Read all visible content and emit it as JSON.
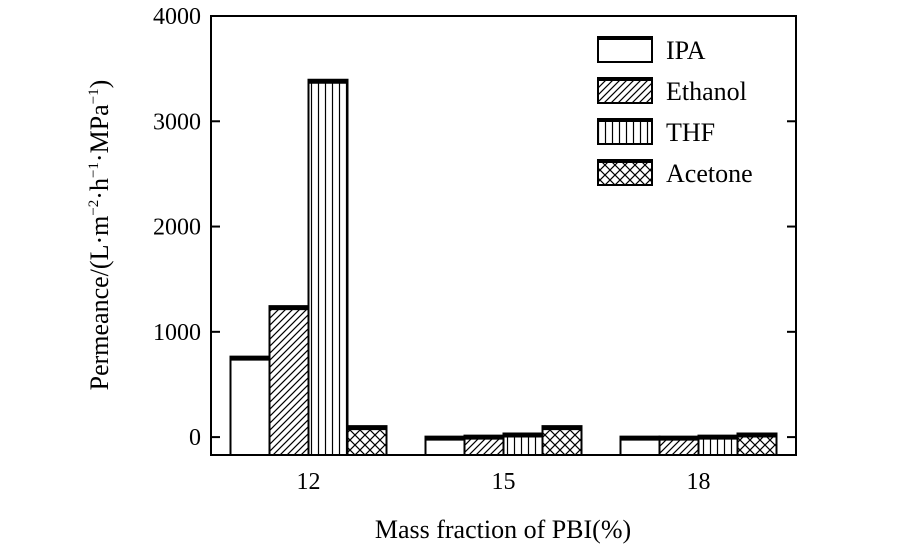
{
  "chart_data": {
    "type": "bar",
    "categories": [
      "12",
      "15",
      "18"
    ],
    "series": [
      {
        "name": "IPA",
        "values": [
          750,
          -10,
          -10
        ],
        "pattern": "none"
      },
      {
        "name": "Ethanol",
        "values": [
          1230,
          0,
          -10
        ],
        "pattern": "diagonal"
      },
      {
        "name": "THF",
        "values": [
          3380,
          20,
          0
        ],
        "pattern": "vertical"
      },
      {
        "name": "Acetone",
        "values": [
          90,
          90,
          20
        ],
        "pattern": "crosshatch"
      }
    ],
    "xlabel": "Mass fraction of PBI(%)",
    "ylabel": {
      "prefix": "Permeance/(L·m",
      "sup1": "−2",
      "mid1": "·h",
      "sup2": "−1",
      "mid2": "·MPa",
      "sup3": "−1",
      "suffix": ")"
    },
    "ylim": [
      -170,
      4000
    ],
    "yticks": [
      0,
      1000,
      2000,
      3000,
      4000
    ],
    "legend_position": "top-right",
    "colors": {
      "bar_fill": "#ffffff",
      "stroke": "#000000"
    }
  }
}
